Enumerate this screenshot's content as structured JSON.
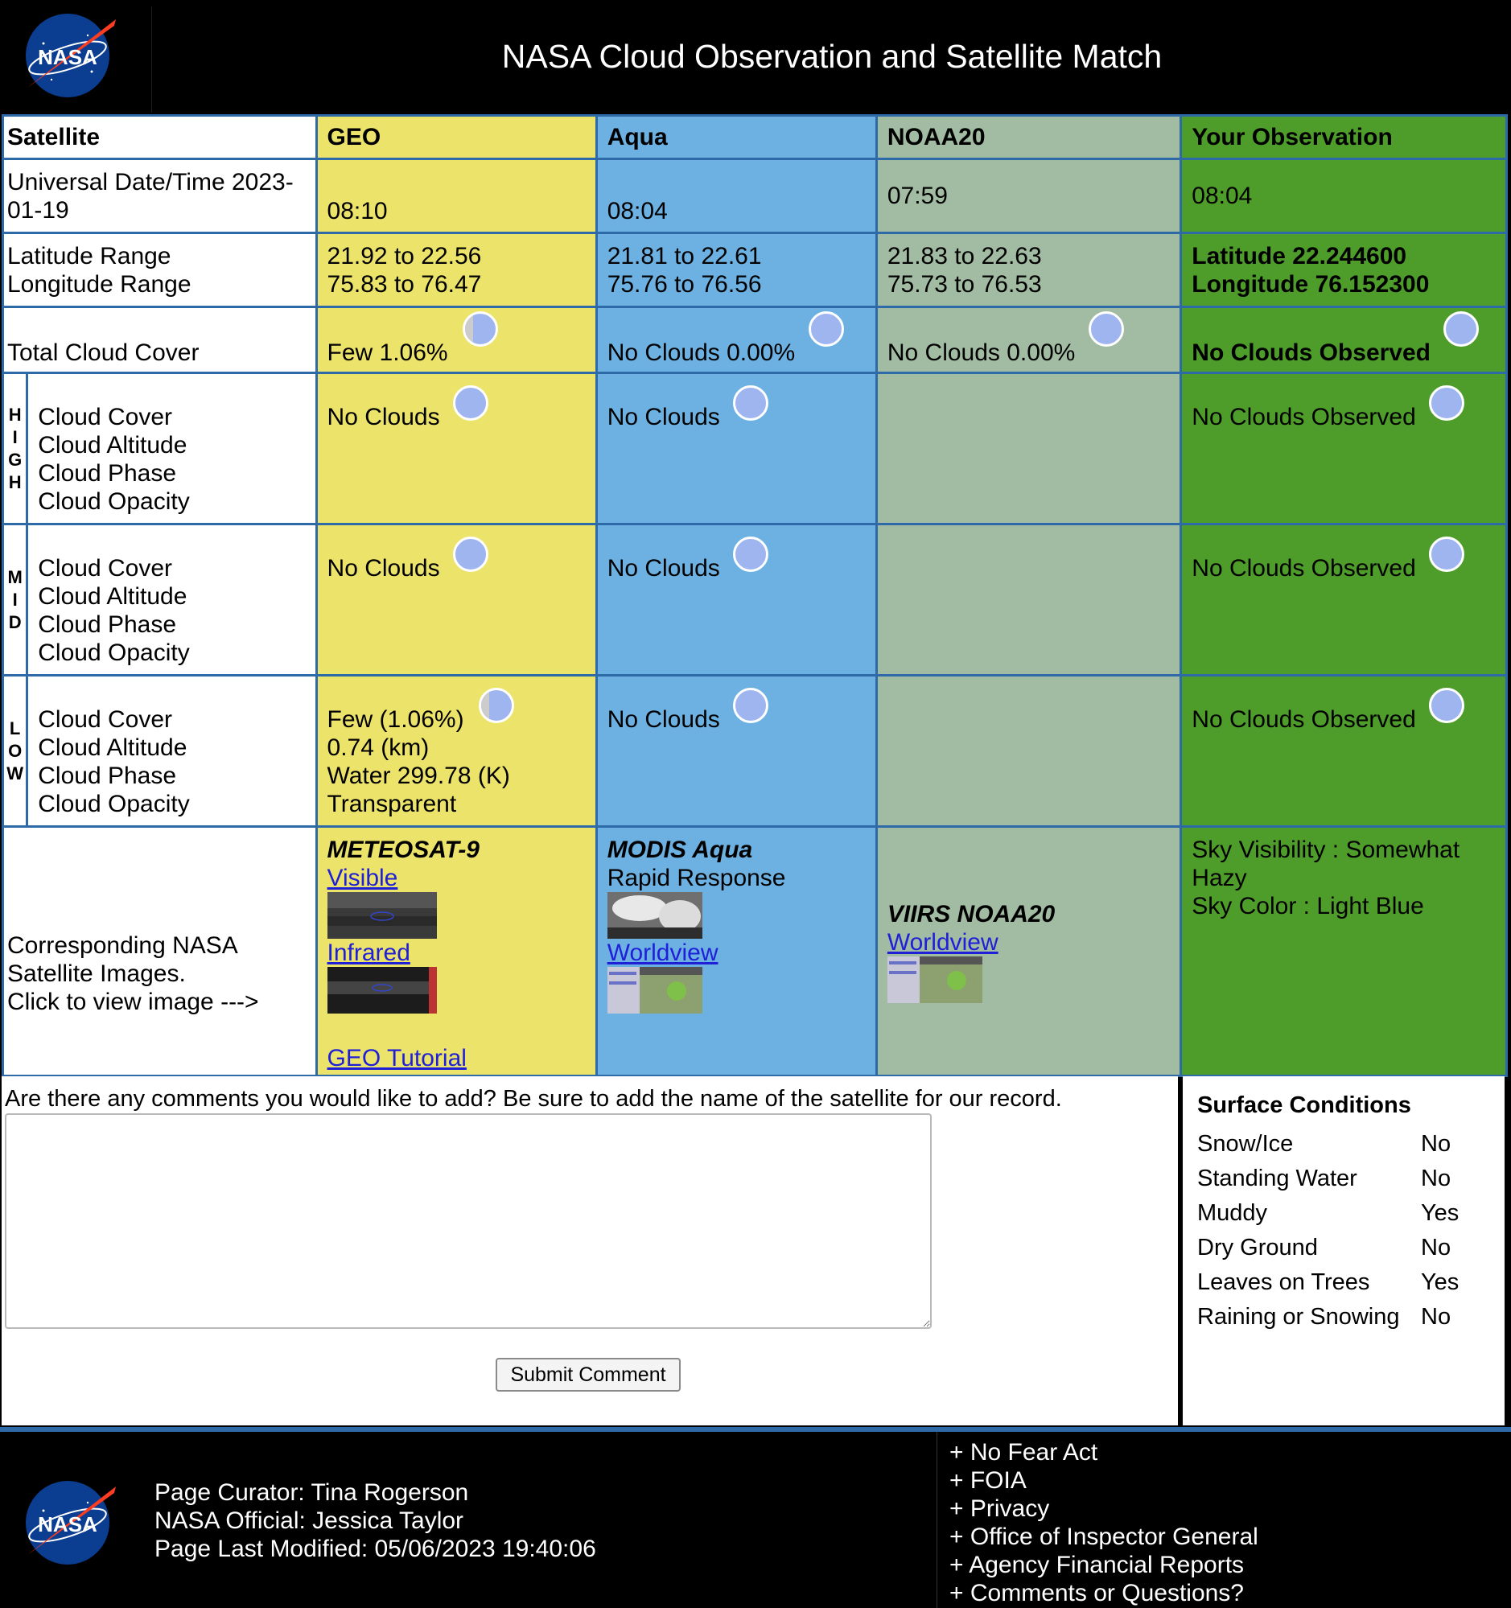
{
  "header": {
    "title": "NASA Cloud Observation and Satellite Match",
    "logo_text": "NASA"
  },
  "colors": {
    "geo": "#ece36a",
    "aqua": "#6cb1e2",
    "noaa": "#a1bca2",
    "obs": "#4e9d2a",
    "border": "#2f6aa8",
    "link": "#1f1fd8"
  },
  "table": {
    "headers": {
      "satellite": "Satellite",
      "geo": "GEO",
      "aqua": "Aqua",
      "noaa": "NOAA20",
      "obs": "Your Observation"
    },
    "datetime": {
      "label": "Universal Date/Time 2023-01-19",
      "geo": "08:10",
      "aqua": "08:04",
      "noaa": "07:59",
      "obs": "08:04"
    },
    "range": {
      "label_lat": "Latitude Range",
      "label_lon": "Longitude Range",
      "geo_lat": "21.92 to 22.56",
      "geo_lon": "75.83 to 76.47",
      "aqua_lat": "21.81 to 22.61",
      "aqua_lon": "75.76 to 76.56",
      "noaa_lat": "21.83 to 22.63",
      "noaa_lon": "75.73 to 76.53",
      "obs_lat": "Latitude 22.244600",
      "obs_lon": "Longitude 76.152300"
    },
    "total": {
      "label": "Total Cloud Cover",
      "geo": "Few 1.06%",
      "aqua": "No Clouds 0.00%",
      "noaa": "No Clouds 0.00%",
      "obs": "No Clouds Observed"
    },
    "levels": [
      {
        "side": [
          "H",
          "I",
          "G",
          "H"
        ],
        "labels": [
          "Cloud Cover",
          "Cloud Altitude",
          "Cloud Phase",
          "Cloud Opacity"
        ],
        "geo": [
          "No Clouds"
        ],
        "aqua": [
          "No Clouds"
        ],
        "obs": "No Clouds Observed"
      },
      {
        "side": [
          "M",
          "I",
          "D"
        ],
        "labels": [
          "Cloud Cover",
          "Cloud Altitude",
          "Cloud Phase",
          "Cloud Opacity"
        ],
        "geo": [
          "No Clouds"
        ],
        "aqua": [
          "No Clouds"
        ],
        "obs": "No Clouds Observed"
      },
      {
        "side": [
          "L",
          "O",
          "W"
        ],
        "labels": [
          "Cloud Cover",
          "Cloud Altitude",
          "Cloud Phase",
          "Cloud Opacity"
        ],
        "geo": [
          "Few (1.06%)",
          "0.74 (km)",
          "Water 299.78 (K)",
          "Transparent"
        ],
        "aqua": [
          "No Clouds"
        ],
        "obs": "No Clouds Observed"
      }
    ],
    "images": {
      "label_lines": [
        "Corresponding NASA",
        "Satellite Images.",
        "Click to view image --->"
      ],
      "geo_title": "METEOSAT-9",
      "geo_visible": "Visible",
      "geo_infrared": "Infrared",
      "geo_tutorial": "GEO Tutorial",
      "aqua_title": "MODIS Aqua",
      "aqua_sub": "Rapid Response",
      "aqua_worldview": "Worldview",
      "noaa_title": "VIIRS NOAA20",
      "noaa_worldview": "Worldview",
      "obs_vis": "Sky Visibility : Somewhat Hazy",
      "obs_color": "Sky Color : Light Blue"
    }
  },
  "comments": {
    "question": "Are there any comments you would like to add? Be sure to add the name of the satellite for our record.",
    "value": "",
    "submit": "Submit Comment"
  },
  "surface": {
    "title": "Surface Conditions",
    "rows": [
      {
        "k": "Snow/Ice",
        "v": "No"
      },
      {
        "k": "Standing Water",
        "v": "No"
      },
      {
        "k": "Muddy",
        "v": "Yes"
      },
      {
        "k": "Dry Ground",
        "v": "No"
      },
      {
        "k": "Leaves on Trees",
        "v": "Yes"
      },
      {
        "k": "Raining or Snowing",
        "v": "No"
      }
    ]
  },
  "footer": {
    "curator": "Page Curator: Tina Rogerson",
    "official": "NASA Official: Jessica Taylor",
    "modified": "Page Last Modified: 05/06/2023 19:40:06",
    "links": [
      "No Fear Act",
      "FOIA",
      "Privacy",
      "Office of Inspector General",
      "Agency Financial Reports",
      "Comments or Questions?"
    ]
  }
}
